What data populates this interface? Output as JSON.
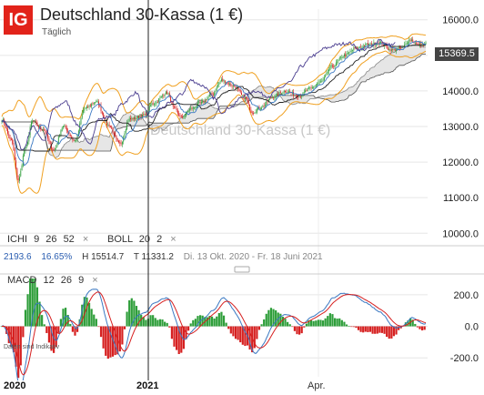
{
  "header": {
    "logo": "IG",
    "title": "Deutschland 30-Kassa (1 €)",
    "subtitle": "Täglich",
    "watermark": "Deutschland 30-Kassa (1 €)"
  },
  "indicators": {
    "ichi": {
      "label": "ICHI",
      "p1": "9",
      "p2": "26",
      "p3": "52",
      "close": "×"
    },
    "boll": {
      "label": "BOLL",
      "p1": "20",
      "p2": "2",
      "close": "×"
    },
    "macd": {
      "label": "MACD",
      "p1": "12",
      "p2": "26",
      "p3": "9",
      "close": "×"
    }
  },
  "stats": {
    "change": "2193.6",
    "change_pct": "16.65%",
    "high": "H 15514.7",
    "low": "T 11331.2",
    "range": "Di. 13 Okt. 2020 - Fr. 18 Juni 2021"
  },
  "price_tag": "15369.5",
  "footnote": "Daten sind Indikativ",
  "x_labels": {
    "a": "2020",
    "b": "2021",
    "c": "Apr."
  },
  "colors": {
    "accent": "#e2231a",
    "up": "#2e9e3a",
    "down": "#d62020",
    "boll": "#f0a020",
    "ichimoku": "#4a3d8f",
    "cloud": "#c8c8c8"
  },
  "chart_data": [
    {
      "type": "line",
      "name": "price",
      "title": "Deutschland 30-Kassa (1 €)",
      "y_ticks": [
        "16000.0",
        "15000.0",
        "14000.0",
        "13000.0",
        "12000.0",
        "11000.0",
        "10000.0"
      ],
      "ylim": [
        9700,
        16300
      ],
      "x_ticks": [
        "2020",
        "2021",
        "Apr."
      ],
      "grid": true,
      "last": 15369.5,
      "anchors": [
        [
          0,
          13200
        ],
        [
          8,
          12600
        ],
        [
          14,
          11500
        ],
        [
          20,
          12400
        ],
        [
          26,
          13150
        ],
        [
          34,
          12950
        ],
        [
          44,
          12350
        ],
        [
          52,
          13000
        ],
        [
          62,
          12600
        ],
        [
          70,
          13500
        ],
        [
          80,
          13700
        ],
        [
          90,
          13050
        ],
        [
          100,
          12500
        ],
        [
          108,
          13200
        ],
        [
          120,
          13300
        ],
        [
          128,
          13650
        ],
        [
          140,
          13950
        ],
        [
          146,
          13500
        ],
        [
          152,
          13250
        ],
        [
          160,
          13500
        ],
        [
          168,
          13650
        ],
        [
          178,
          13900
        ],
        [
          186,
          14300
        ],
        [
          196,
          14150
        ],
        [
          206,
          13800
        ],
        [
          212,
          13400
        ],
        [
          220,
          13550
        ],
        [
          230,
          13850
        ],
        [
          240,
          14000
        ],
        [
          252,
          13850
        ],
        [
          260,
          14050
        ],
        [
          270,
          14250
        ],
        [
          280,
          14700
        ],
        [
          290,
          15000
        ],
        [
          300,
          15200
        ],
        [
          310,
          15300
        ],
        [
          320,
          15350
        ],
        [
          330,
          15150
        ],
        [
          338,
          15200
        ],
        [
          346,
          15450
        ],
        [
          352,
          15300
        ]
      ]
    },
    {
      "type": "line",
      "name": "macd",
      "y_ticks": [
        "200.0",
        "0.0",
        "-200.0"
      ],
      "ylim": [
        -320,
        280
      ],
      "x_ticks": [
        "2020",
        "2021",
        "Apr."
      ],
      "grid": true
    }
  ]
}
